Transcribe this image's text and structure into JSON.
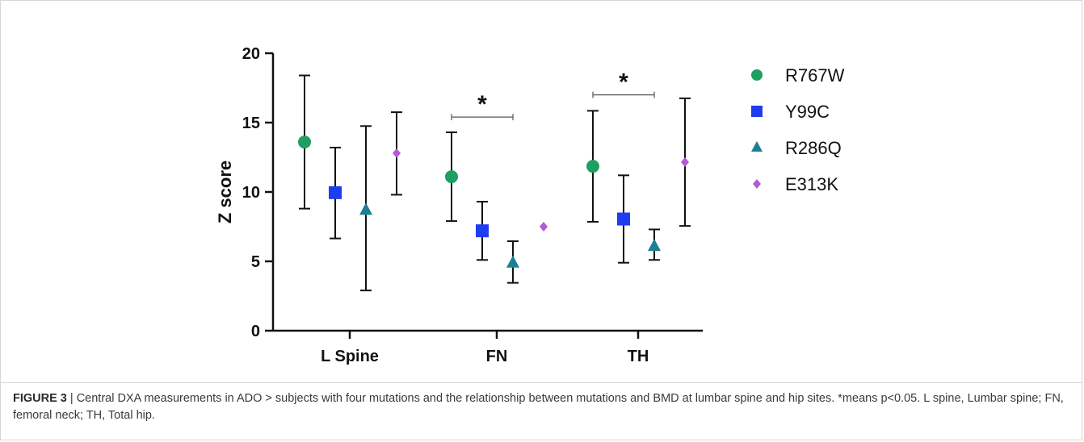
{
  "chart_data": {
    "type": "scatter",
    "ylabel": "Z score",
    "xlabel": "",
    "ylim": [
      0,
      20
    ],
    "yticks": [
      0,
      5,
      10,
      15,
      20
    ],
    "categories": [
      "L Spine",
      "FN",
      "TH"
    ],
    "grid": false,
    "legend_position": "right",
    "series": [
      {
        "name": "R767W",
        "marker": "circle",
        "color": "#1f9e62",
        "values": [
          13.6,
          11.1,
          11.85
        ],
        "err_low": [
          8.8,
          7.9,
          7.85
        ],
        "err_high": [
          18.4,
          14.3,
          15.85
        ]
      },
      {
        "name": "Y99C",
        "marker": "square",
        "color": "#1e3cf0",
        "values": [
          9.95,
          7.2,
          8.05
        ],
        "err_low": [
          6.65,
          5.1,
          4.9
        ],
        "err_high": [
          13.2,
          9.3,
          11.2
        ]
      },
      {
        "name": "R286Q",
        "marker": "triangle",
        "color": "#1c7f93",
        "values": [
          8.7,
          4.9,
          6.1
        ],
        "err_low": [
          2.9,
          3.45,
          5.1
        ],
        "err_high": [
          14.75,
          6.45,
          7.3
        ]
      },
      {
        "name": "E313K",
        "marker": "diamond",
        "color": "#b55ad6",
        "values": [
          12.8,
          7.5,
          12.15
        ],
        "err_low": [
          9.8,
          null,
          7.55
        ],
        "err_high": [
          15.75,
          null,
          16.75
        ]
      }
    ],
    "annotations": [
      {
        "text": "*",
        "category": "FN",
        "from_series": "R767W",
        "to_series": "R286Q",
        "y": 15.4
      },
      {
        "text": "*",
        "category": "TH",
        "from_series": "R767W",
        "to_series": "R286Q",
        "y": 17.0
      }
    ]
  },
  "caption": {
    "label": "FIGURE 3",
    "separator": " | ",
    "text": "Central DXA measurements in ADO > subjects with four mutations and the relationship between mutations and BMD at lumbar spine and hip sites. *means p<0.05. L spine, Lumbar spine; FN, femoral neck; TH, Total hip."
  }
}
